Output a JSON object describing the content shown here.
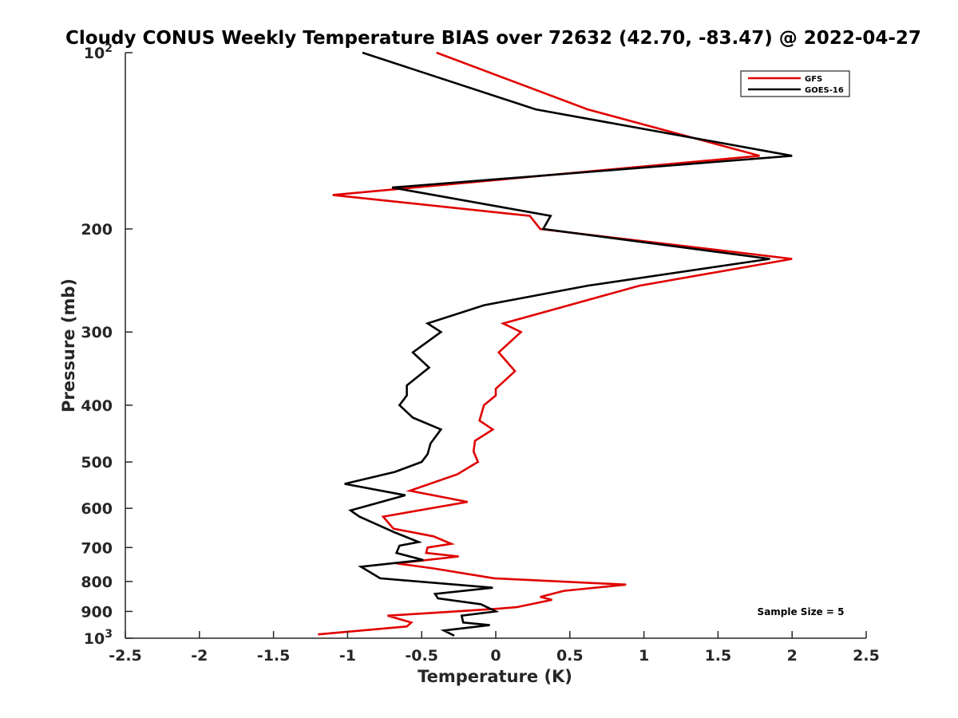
{
  "chart_data": {
    "type": "line",
    "title": "Cloudy CONUS Weekly Temperature BIAS over 72632 (42.70, -83.47) @ 2022-04-27",
    "xlabel": "Temperature (K)",
    "ylabel": "Pressure (mb)",
    "xlim": [
      -2.5,
      2.5
    ],
    "ylim": [
      100,
      1000
    ],
    "y_scale": "log",
    "y_reversed": true,
    "grid": false,
    "legend_position": "top-right",
    "x_ticks": [
      "-2.5",
      "-2",
      "-1.5",
      "-1",
      "-0.5",
      "0",
      "0.5",
      "1",
      "1.5",
      "2",
      "2.5"
    ],
    "y_ticks": [
      {
        "value": 100,
        "base": "10",
        "exp": "2"
      },
      {
        "value": 200,
        "label": "200"
      },
      {
        "value": 300,
        "label": "300"
      },
      {
        "value": 400,
        "label": "400"
      },
      {
        "value": 500,
        "label": "500"
      },
      {
        "value": 600,
        "label": "600"
      },
      {
        "value": 700,
        "label": "700"
      },
      {
        "value": 800,
        "label": "800"
      },
      {
        "value": 900,
        "label": "900"
      },
      {
        "value": 1000,
        "base": "10",
        "exp": "3"
      }
    ],
    "annotation": "Sample Size = 5",
    "series": [
      {
        "name": "GFS",
        "color": "#e00000",
        "points": [
          [
            -0.4,
            100
          ],
          [
            0.62,
            125
          ],
          [
            1.78,
            150
          ],
          [
            -1.1,
            175
          ],
          [
            0.23,
            190
          ],
          [
            0.3,
            200
          ],
          [
            2.0,
            225
          ],
          [
            0.97,
            250
          ],
          [
            0.38,
            275
          ],
          [
            0.05,
            290
          ],
          [
            0.17,
            300
          ],
          [
            0.02,
            325
          ],
          [
            0.13,
            350
          ],
          [
            0.0,
            375
          ],
          [
            0.0,
            385
          ],
          [
            -0.08,
            400
          ],
          [
            -0.11,
            425
          ],
          [
            -0.02,
            440
          ],
          [
            -0.14,
            460
          ],
          [
            -0.15,
            480
          ],
          [
            -0.12,
            500
          ],
          [
            -0.26,
            525
          ],
          [
            -0.58,
            560
          ],
          [
            -0.19,
            585
          ],
          [
            -0.76,
            620
          ],
          [
            -0.69,
            650
          ],
          [
            -0.42,
            670
          ],
          [
            -0.3,
            690
          ],
          [
            -0.46,
            700
          ],
          [
            -0.47,
            715
          ],
          [
            -0.25,
            725
          ],
          [
            -0.67,
            745
          ],
          [
            -0.42,
            760
          ],
          [
            -0.01,
            790
          ],
          [
            0.88,
            810
          ],
          [
            0.46,
            830
          ],
          [
            0.3,
            850
          ],
          [
            0.38,
            860
          ],
          [
            0.14,
            885
          ],
          [
            0.02,
            890
          ],
          [
            -0.42,
            905
          ],
          [
            -0.73,
            915
          ],
          [
            -0.57,
            940
          ],
          [
            -0.6,
            955
          ],
          [
            -1.2,
            985
          ]
        ]
      },
      {
        "name": "GOES-16",
        "color": "#000000",
        "points": [
          [
            -0.9,
            100
          ],
          [
            0.27,
            125
          ],
          [
            2.0,
            150
          ],
          [
            -0.7,
            170
          ],
          [
            0.37,
            190
          ],
          [
            0.32,
            200
          ],
          [
            1.85,
            225
          ],
          [
            0.62,
            250
          ],
          [
            -0.08,
            270
          ],
          [
            -0.46,
            290
          ],
          [
            -0.37,
            300
          ],
          [
            -0.56,
            325
          ],
          [
            -0.45,
            345
          ],
          [
            -0.6,
            370
          ],
          [
            -0.6,
            385
          ],
          [
            -0.65,
            400
          ],
          [
            -0.56,
            420
          ],
          [
            -0.37,
            440
          ],
          [
            -0.44,
            465
          ],
          [
            -0.46,
            485
          ],
          [
            -0.5,
            500
          ],
          [
            -0.68,
            520
          ],
          [
            -1.02,
            545
          ],
          [
            -0.61,
            570
          ],
          [
            -0.98,
            605
          ],
          [
            -0.92,
            620
          ],
          [
            -0.68,
            660
          ],
          [
            -0.52,
            685
          ],
          [
            -0.65,
            695
          ],
          [
            -0.67,
            715
          ],
          [
            -0.49,
            735
          ],
          [
            -0.91,
            755
          ],
          [
            -0.78,
            790
          ],
          [
            -0.02,
            820
          ],
          [
            -0.41,
            840
          ],
          [
            -0.39,
            855
          ],
          [
            -0.1,
            875
          ],
          [
            0.0,
            900
          ],
          [
            -0.23,
            915
          ],
          [
            -0.22,
            940
          ],
          [
            -0.04,
            950
          ],
          [
            -0.35,
            970
          ],
          [
            -0.28,
            990
          ]
        ]
      }
    ]
  }
}
